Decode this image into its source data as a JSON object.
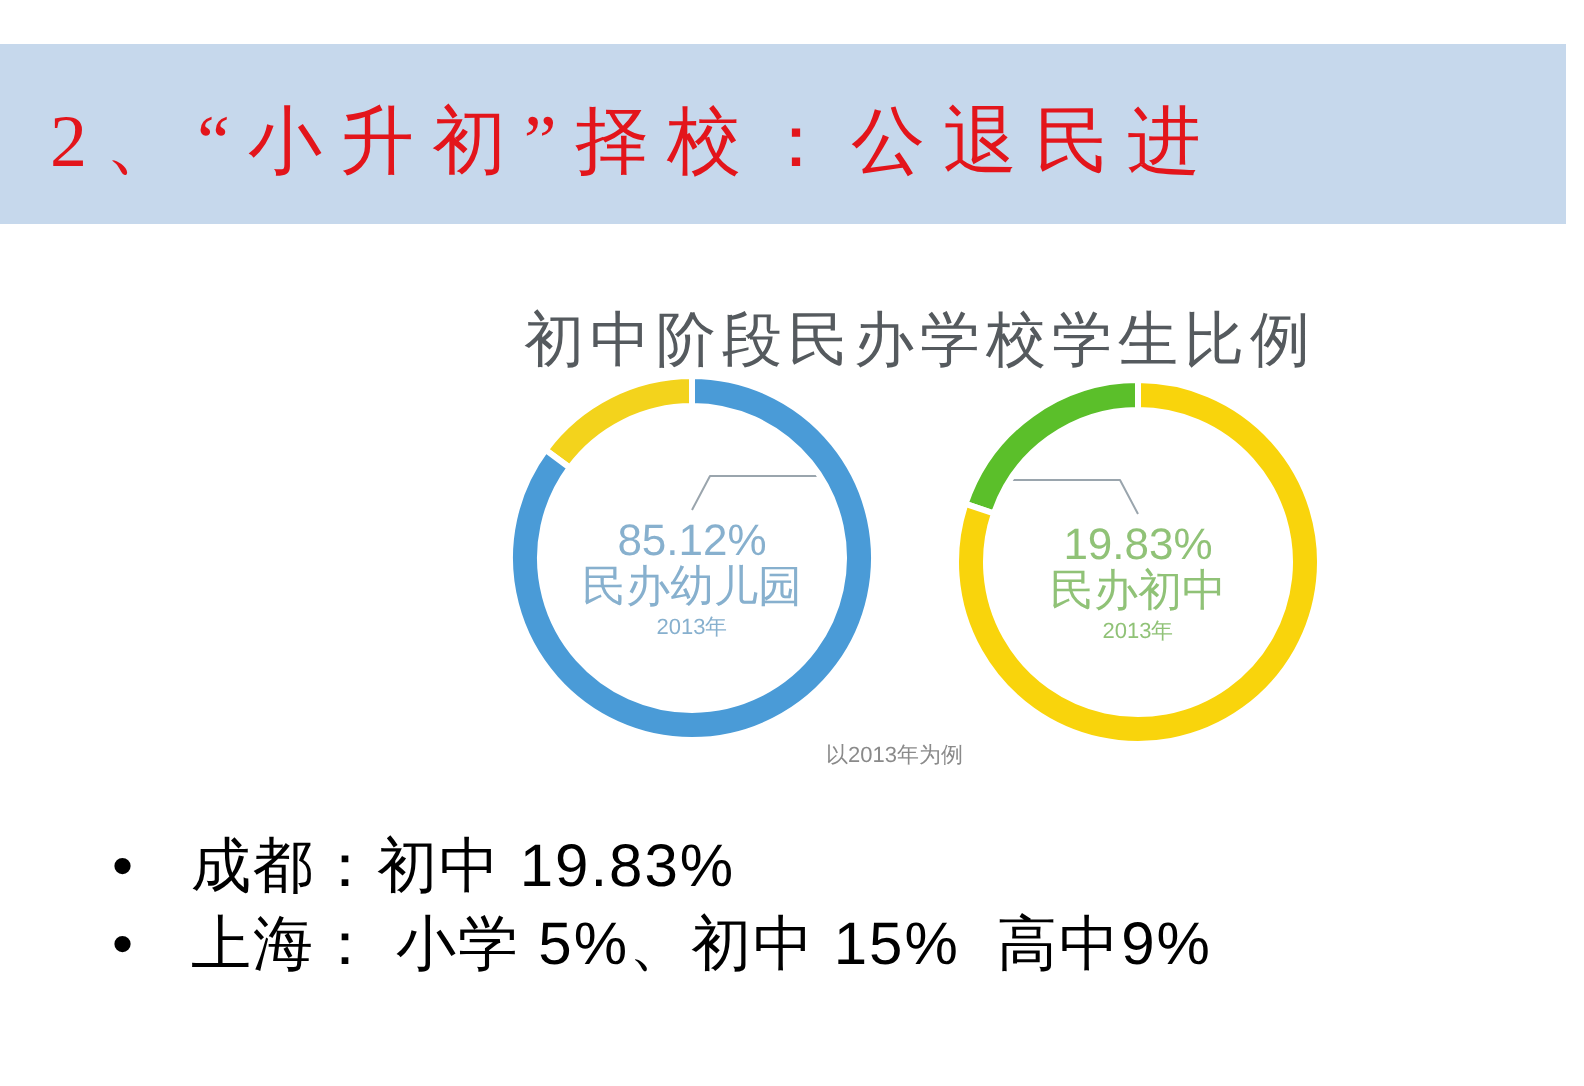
{
  "chart_data": [
    {
      "type": "other",
      "title": "2、“小升初”择校：公退民进",
      "subtitle": "初中阶段民办学校学生比例"
    },
    {
      "type": "donut",
      "categories": [
        null,
        "民办幼儿园"
      ],
      "values": [
        14.88,
        85.12
      ],
      "colors": [
        "#f3d31c",
        "#4a9bd7"
      ],
      "value_labels": [
        null,
        "85.12%"
      ],
      "annotations": [
        "2013年"
      ]
    },
    {
      "type": "donut",
      "categories": [
        "民办初中",
        null
      ],
      "values": [
        19.83,
        80.17
      ],
      "colors": [
        "#5bbf2a",
        "#f9d40c"
      ],
      "value_labels": [
        "19.83%",
        null
      ],
      "annotations": [
        "2013年",
        "以2013年为例"
      ]
    },
    {
      "type": "other",
      "annotations": [
        "•   成都：初中 19.83%",
        "•   上海： 小学 5%、初中 15%  高中9%"
      ]
    }
  ]
}
